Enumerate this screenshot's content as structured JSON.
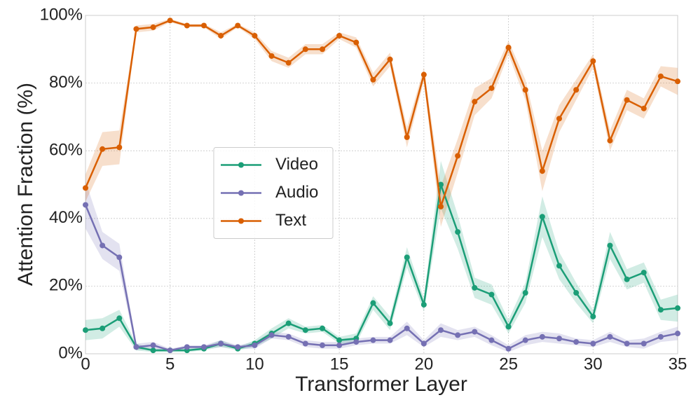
{
  "chart_data": {
    "type": "line",
    "xlabel": "Transformer Layer",
    "ylabel": "Attention Fraction (%)",
    "x": [
      0,
      1,
      2,
      3,
      4,
      5,
      6,
      7,
      8,
      9,
      10,
      11,
      12,
      13,
      14,
      15,
      16,
      17,
      18,
      19,
      20,
      21,
      22,
      23,
      24,
      25,
      26,
      27,
      28,
      29,
      30,
      31,
      32,
      33,
      34,
      35
    ],
    "series": [
      {
        "name": "Video",
        "color": "#1b9e77",
        "values": [
          7,
          7.5,
          10.5,
          2,
          1,
          1,
          1,
          1.5,
          3,
          1.5,
          3,
          6,
          9,
          7,
          7.5,
          4,
          4.5,
          15,
          9,
          28.5,
          14.5,
          50,
          36,
          19.5,
          17.5,
          8,
          18,
          40.5,
          26,
          18,
          11,
          32,
          22,
          24,
          13,
          13.5
        ],
        "error": [
          3,
          3,
          2.5,
          1,
          0.5,
          0.5,
          0.5,
          0.5,
          1,
          0.5,
          1,
          1.5,
          1.5,
          1,
          1,
          1,
          1.5,
          2,
          2,
          3,
          2,
          7,
          5,
          3,
          3,
          2,
          3,
          6,
          4,
          3,
          2,
          4,
          3,
          3,
          3,
          4
        ]
      },
      {
        "name": "Audio",
        "color": "#7570b3",
        "values": [
          44,
          32,
          28.5,
          2,
          2.5,
          1,
          2,
          2,
          3,
          2,
          2.5,
          5.5,
          5,
          3,
          2.5,
          2.5,
          3.5,
          4,
          4,
          7.5,
          3,
          7,
          5.5,
          6.5,
          4,
          1.5,
          4,
          5,
          4.5,
          3.5,
          3,
          5,
          3,
          3,
          5,
          6
        ],
        "error": [
          7,
          4,
          4,
          1,
          1,
          0.5,
          0.5,
          0.5,
          1,
          0.5,
          1,
          1,
          1,
          1,
          1,
          1,
          1,
          1,
          1,
          2,
          1,
          2,
          1.5,
          1.5,
          1.5,
          1,
          1.5,
          1.5,
          1.5,
          1,
          1,
          1.5,
          1,
          1.5,
          1.5,
          2
        ]
      },
      {
        "name": "Text",
        "color": "#d95f02",
        "values": [
          49,
          60.5,
          61,
          96,
          96.5,
          98.5,
          97,
          97,
          94,
          97,
          94,
          88,
          86,
          90,
          90,
          94,
          92,
          81,
          87,
          64,
          82.5,
          43.5,
          58.5,
          74.5,
          78.5,
          90.5,
          78,
          54,
          69.5,
          78,
          86.5,
          63,
          75,
          72.5,
          82,
          80.5
        ],
        "error": [
          4,
          5,
          5,
          1,
          1,
          0.5,
          0.5,
          0.5,
          1,
          0.5,
          1,
          1.5,
          1.5,
          1.5,
          1.5,
          1,
          1.5,
          2,
          2,
          3,
          2,
          6,
          5,
          4,
          3,
          2,
          3,
          6,
          4,
          3,
          2,
          3,
          3,
          3,
          3,
          4
        ]
      }
    ],
    "xlim": [
      0,
      35
    ],
    "xticks": [
      0,
      5,
      10,
      15,
      20,
      25,
      30,
      35
    ],
    "ylim": [
      0,
      100
    ],
    "yticks": [
      {
        "value": 0,
        "label": "0%"
      },
      {
        "value": 20,
        "label": "20%"
      },
      {
        "value": 40,
        "label": "40%"
      },
      {
        "value": 60,
        "label": "60%"
      },
      {
        "value": 80,
        "label": "80%"
      },
      {
        "value": 100,
        "label": "100%"
      }
    ],
    "grid": true,
    "legend": "center left"
  }
}
